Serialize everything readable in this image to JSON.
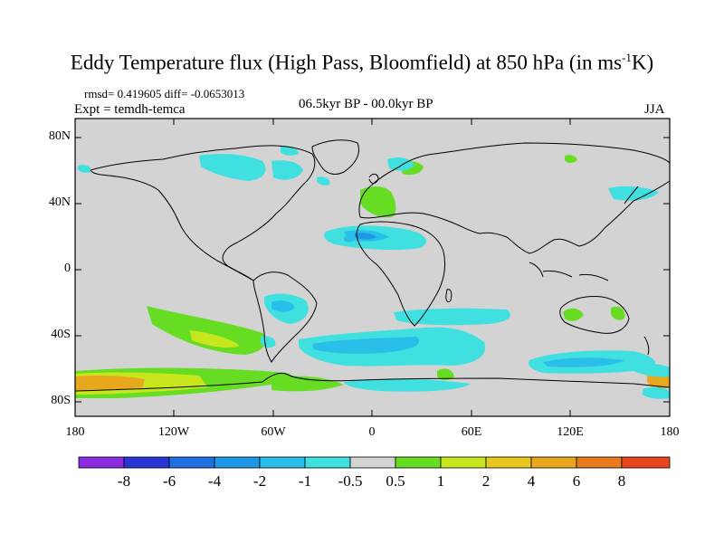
{
  "title": {
    "main": "Eddy Temperature flux (High Pass, Bloomfield) at 850 hPa (in ms",
    "sup": "-1",
    "tail": "K)"
  },
  "stats": "rmsd= 0.419605 diff= -0.0653013",
  "experiment": "Expt = temdh-temca",
  "period": "06.5kyr BP - 00.0kyr BP",
  "season": "JJA",
  "lat_labels": [
    "80N",
    "40N",
    "0",
    "40S",
    "80S"
  ],
  "lon_labels": [
    "180",
    "120W",
    "60W",
    "0",
    "60E",
    "120E",
    "180"
  ],
  "colorbar": {
    "colors": [
      "#8a2be2",
      "#2a35d6",
      "#1f6fe0",
      "#1e98e6",
      "#2abfe8",
      "#40e0e0",
      "#d3d3d3",
      "#66dd22",
      "#c8e61e",
      "#e8c81e",
      "#e8a81e",
      "#e87a1e",
      "#e8461e"
    ],
    "labels": [
      "-8",
      "-6",
      "-4",
      "-2",
      "-1",
      "-0.5",
      "0.5",
      "1",
      "2",
      "4",
      "6",
      "8"
    ]
  },
  "colors": {
    "neutral": "#d3d3d3",
    "cyan": "#40e0e0",
    "light_blue": "#2abfe8",
    "blue": "#1e98e6",
    "green": "#66dd22",
    "yellow_green": "#c8e61e",
    "orange": "#e8a81e"
  }
}
